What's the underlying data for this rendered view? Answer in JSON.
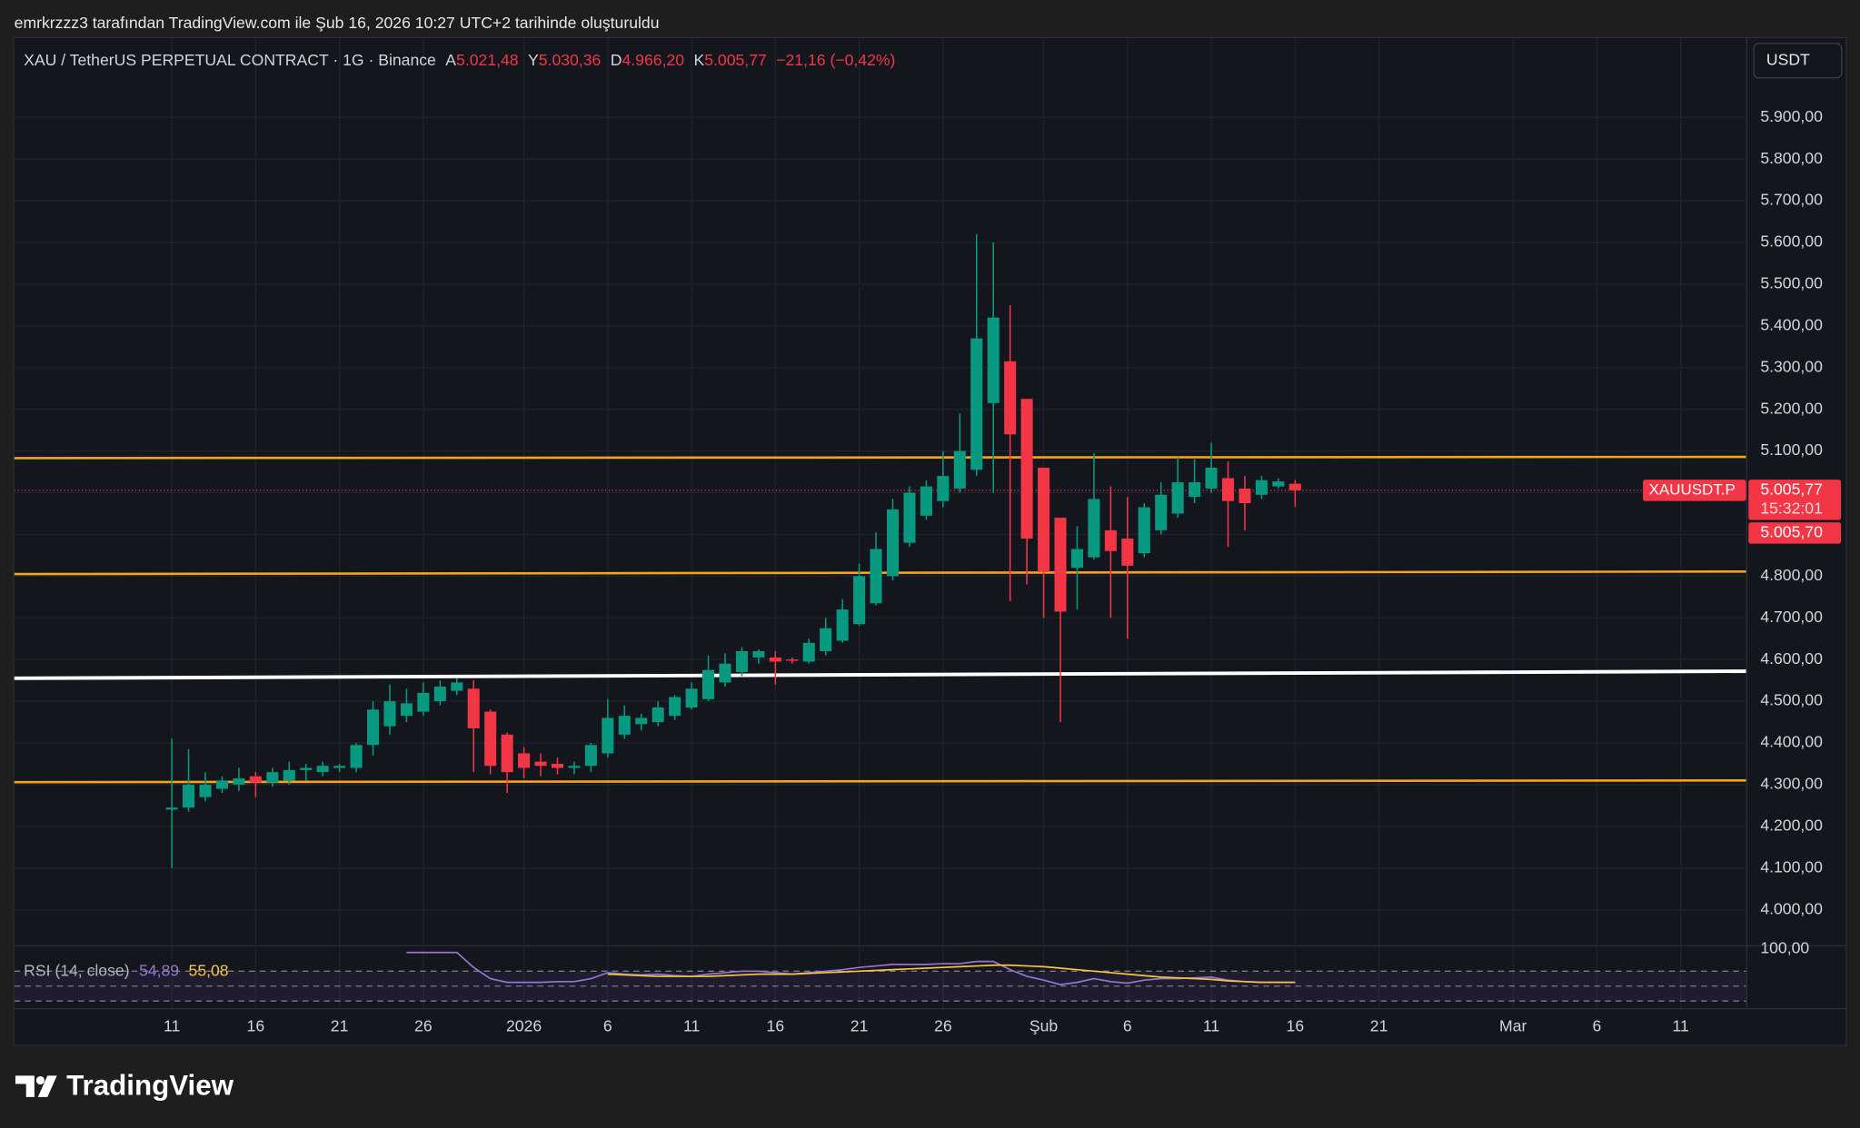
{
  "page": {
    "caption": "emrkrzzz3 tarafından TradingView.com ile Şub 16, 2026 10:27 UTC+2 tarihinde oluşturuldu",
    "brand": "TradingView"
  },
  "chart_data": {
    "type": "candlestick",
    "title": "XAU / TetherUS PERPETUAL CONTRACT · 1G · Binance",
    "ohlc_legend": [
      {
        "label": "A",
        "value": "5.021,48"
      },
      {
        "label": "Y",
        "value": "5.030,36"
      },
      {
        "label": "D",
        "value": "4.966,20"
      },
      {
        "label": "K",
        "value": "5.005,77"
      }
    ],
    "change": "−21,16 (−0,42%)",
    "currency": "USDT",
    "up_color": "#089981",
    "down_color": "#f23645",
    "open": [
      4240,
      4245,
      4270,
      4290,
      4300,
      4320,
      4305,
      4310,
      4335,
      4330,
      4340,
      4340,
      4395,
      4440,
      4465,
      4475,
      4500,
      4525,
      4530,
      4475,
      4420,
      4375,
      4355,
      4350,
      4340,
      4345,
      4375,
      4420,
      4445,
      4450,
      4465,
      4485,
      4505,
      4545,
      4570,
      4605,
      4605,
      4600,
      4595,
      4620,
      4645,
      4685,
      4735,
      4800,
      4880,
      4945,
      4980,
      5010,
      5055,
      5215,
      5315,
      5225,
      5060,
      4940,
      4820,
      4845,
      4910,
      4890,
      4855,
      4910,
      4950,
      4990,
      5010,
      5035,
      5010,
      4995,
      5015,
      5021.48
    ],
    "high": [
      4410,
      4385,
      4330,
      4320,
      4340,
      4330,
      4340,
      4355,
      4350,
      4355,
      4350,
      4400,
      4500,
      4540,
      4530,
      4545,
      4550,
      4555,
      4550,
      4480,
      4425,
      4390,
      4375,
      4365,
      4355,
      4400,
      4505,
      4490,
      4470,
      4500,
      4515,
      4545,
      4610,
      4615,
      4630,
      4625,
      4620,
      4605,
      4650,
      4700,
      4745,
      4830,
      4905,
      4985,
      5015,
      5030,
      5100,
      5190,
      5620,
      5600,
      5450,
      5225,
      5060,
      4940,
      4920,
      5095,
      5015,
      4990,
      4975,
      5025,
      5085,
      5080,
      5120,
      5075,
      5040,
      5040,
      5035,
      5030.36
    ],
    "low": [
      4100,
      4235,
      4260,
      4280,
      4285,
      4270,
      4295,
      4300,
      4310,
      4320,
      4330,
      4330,
      4370,
      4420,
      4450,
      4465,
      4490,
      4515,
      4330,
      4325,
      4280,
      4315,
      4320,
      4325,
      4325,
      4330,
      4365,
      4410,
      4430,
      4440,
      4455,
      4480,
      4500,
      4535,
      4560,
      4590,
      4540,
      4590,
      4590,
      4610,
      4640,
      4680,
      4730,
      4790,
      4870,
      4935,
      4965,
      5000,
      5040,
      5000,
      4740,
      4780,
      4700,
      4450,
      4720,
      4840,
      4700,
      4650,
      4845,
      4900,
      4940,
      4975,
      5000,
      4870,
      4910,
      4985,
      5010,
      4966.2
    ],
    "close": [
      4245,
      4300,
      4300,
      4310,
      4315,
      4305,
      4330,
      4335,
      4340,
      4345,
      4345,
      4395,
      4480,
      4500,
      4495,
      4520,
      4535,
      4545,
      4435,
      4345,
      4330,
      4340,
      4345,
      4340,
      4345,
      4395,
      4460,
      4465,
      4460,
      4485,
      4510,
      4530,
      4575,
      4590,
      4620,
      4620,
      4595,
      4597,
      4640,
      4675,
      4720,
      4800,
      4865,
      4960,
      5000,
      5015,
      5040,
      5100,
      5370,
      5420,
      5140,
      4890,
      4810,
      4715,
      4865,
      4985,
      4860,
      4825,
      4965,
      4995,
      5025,
      5025,
      5060,
      4980,
      4975,
      5030,
      5027,
      5005.77
    ],
    "xlim": [
      -9.4,
      93.9
    ],
    "xticks": [
      {
        "value": 0,
        "label": "11"
      },
      {
        "value": 5,
        "label": "16"
      },
      {
        "value": 10,
        "label": "21"
      },
      {
        "value": 15,
        "label": "26"
      },
      {
        "value": 21,
        "label": "2026"
      },
      {
        "value": 26,
        "label": "6"
      },
      {
        "value": 31,
        "label": "11"
      },
      {
        "value": 36,
        "label": "16"
      },
      {
        "value": 41,
        "label": "21"
      },
      {
        "value": 46,
        "label": "26"
      },
      {
        "value": 52,
        "label": "Şub"
      },
      {
        "value": 57,
        "label": "6"
      },
      {
        "value": 62,
        "label": "11"
      },
      {
        "value": 67,
        "label": "16"
      },
      {
        "value": 72,
        "label": "21"
      },
      {
        "value": 80,
        "label": "Mar"
      },
      {
        "value": 85,
        "label": "6"
      },
      {
        "value": 90,
        "label": "11"
      }
    ],
    "ylim": [
      3915,
      6090
    ],
    "yticks": [
      {
        "value": 4000,
        "label": "4.000,00"
      },
      {
        "value": 4100,
        "label": "4.100,00"
      },
      {
        "value": 4200,
        "label": "4.200,00"
      },
      {
        "value": 4300,
        "label": "4.300,00"
      },
      {
        "value": 4400,
        "label": "4.400,00"
      },
      {
        "value": 4500,
        "label": "4.500,00"
      },
      {
        "value": 4600,
        "label": "4.600,00"
      },
      {
        "value": 4700,
        "label": "4.700,00"
      },
      {
        "value": 4800,
        "label": "4.800,00"
      },
      {
        "value": 4900,
        "label": "4.900,00"
      },
      {
        "value": 5000,
        "label": "5.000,00"
      },
      {
        "value": 5100,
        "label": "5.100,00"
      },
      {
        "value": 5200,
        "label": "5.200,00"
      },
      {
        "value": 5300,
        "label": "5.300,00"
      },
      {
        "value": 5400,
        "label": "5.400,00"
      },
      {
        "value": 5500,
        "label": "5.500,00"
      },
      {
        "value": 5600,
        "label": "5.600,00"
      },
      {
        "value": 5700,
        "label": "5.700,00"
      },
      {
        "value": 5800,
        "label": "5.800,00"
      },
      {
        "value": 5900,
        "label": "5.900,00"
      }
    ],
    "grid": true,
    "lines": [
      {
        "color": "#f7a21b",
        "from": 5083,
        "to": 5086
      },
      {
        "color": "#f7a21b",
        "from": 4805,
        "to": 4811
      },
      {
        "color": "#ffffff",
        "from": 4555,
        "to": 4572
      },
      {
        "color": "#f7a21b",
        "from": 4306,
        "to": 4310
      }
    ],
    "last_price": {
      "symbol": "XAUUSDT.P",
      "price": "5.005,77",
      "countdown": "15:32:01",
      "bid": "5.005,70"
    },
    "rsi": {
      "title": "RSI (14, close)",
      "ylim": [
        0,
        100
      ],
      "yticks": [
        {
          "value": 100,
          "label": "100,00"
        }
      ],
      "levels": [
        70,
        50,
        30
      ],
      "series": [
        {
          "color": "#9575cd",
          "value_label": "54,89",
          "values": [
            null,
            null,
            null,
            null,
            null,
            null,
            null,
            null,
            null,
            null,
            null,
            null,
            null,
            null,
            95,
            95,
            95,
            95,
            75,
            60,
            55,
            55,
            55,
            56,
            56,
            60,
            68,
            66,
            65,
            66,
            64,
            63,
            66,
            68,
            70,
            70,
            68,
            66,
            68,
            70,
            72,
            75,
            77,
            79,
            79,
            79,
            80,
            80,
            83,
            83,
            72,
            63,
            58,
            52,
            55,
            60,
            56,
            54,
            58,
            60,
            60,
            61,
            62,
            58,
            56,
            55,
            55,
            54.89
          ]
        },
        {
          "color": "#f5c542",
          "value_label": "55,08",
          "values": [
            null,
            null,
            null,
            null,
            null,
            null,
            null,
            null,
            null,
            null,
            null,
            null,
            null,
            null,
            null,
            null,
            null,
            null,
            null,
            null,
            null,
            null,
            null,
            null,
            null,
            null,
            66,
            65,
            64,
            63,
            63,
            63,
            63,
            64,
            65,
            66,
            66,
            66,
            67,
            68,
            69,
            70,
            71,
            72,
            73,
            74,
            75,
            76,
            77,
            78,
            78,
            77,
            76,
            74,
            72,
            70,
            68,
            66,
            64,
            62,
            61,
            60,
            59,
            57,
            56,
            55,
            55,
            55.08
          ]
        }
      ]
    }
  }
}
